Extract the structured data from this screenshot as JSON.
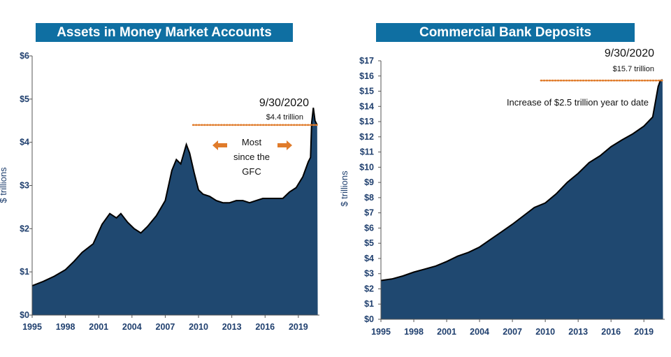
{
  "chart_data": [
    {
      "type": "area",
      "title": "Assets in Money Market Accounts",
      "ylabel": "$ trillions",
      "xlabel": "",
      "ylim": [
        0,
        6
      ],
      "xlim": [
        1995,
        2020.9
      ],
      "yticks": [
        "$0",
        "$1",
        "$2",
        "$3",
        "$4",
        "$5",
        "$6"
      ],
      "xticks": [
        "1995",
        "1998",
        "2001",
        "2004",
        "2007",
        "2010",
        "2013",
        "2016",
        "2019"
      ],
      "grid": false,
      "color": "#1f4870",
      "x": [
        1995.0,
        1996.0,
        1997.0,
        1998.0,
        1998.8,
        1999.5,
        2000.5,
        2001.3,
        2002.0,
        2002.6,
        2003.0,
        2003.6,
        2004.2,
        2004.8,
        2005.4,
        2006.2,
        2007.0,
        2007.6,
        2008.0,
        2008.4,
        2008.9,
        2009.2,
        2009.6,
        2010.0,
        2010.4,
        2011.0,
        2011.6,
        2012.2,
        2012.8,
        2013.4,
        2014.0,
        2014.6,
        2015.2,
        2015.8,
        2016.4,
        2017.0,
        2017.6,
        2018.2,
        2018.8,
        2019.4,
        2019.9,
        2020.1,
        2020.2,
        2020.35,
        2020.5,
        2020.7,
        2020.75
      ],
      "values": [
        0.68,
        0.78,
        0.9,
        1.05,
        1.25,
        1.45,
        1.65,
        2.1,
        2.35,
        2.25,
        2.35,
        2.15,
        2.0,
        1.9,
        2.05,
        2.3,
        2.65,
        3.35,
        3.6,
        3.5,
        3.95,
        3.75,
        3.3,
        2.9,
        2.8,
        2.75,
        2.65,
        2.6,
        2.6,
        2.65,
        2.65,
        2.6,
        2.65,
        2.7,
        2.7,
        2.7,
        2.7,
        2.85,
        2.95,
        3.2,
        3.55,
        3.65,
        4.45,
        4.8,
        4.5,
        4.4,
        0
      ],
      "reference_line": {
        "value": 4.4,
        "from_x": 2009.5,
        "to_x": 2020.7,
        "color": "#e07b2a"
      },
      "annotations": {
        "date": "9/30/2020",
        "value_label": "$4.4 trillion",
        "note_line1": "Most",
        "note_line2": "since the",
        "note_line3": "GFC",
        "arrow_color": "#e07b2a"
      }
    },
    {
      "type": "area",
      "title": "Commercial Bank Deposits",
      "ylabel": "$ trillions",
      "xlabel": "",
      "ylim": [
        0,
        17
      ],
      "xlim": [
        1995,
        2020.9
      ],
      "yticks": [
        "$0",
        "$1",
        "$2",
        "$3",
        "$4",
        "$5",
        "$6",
        "$7",
        "$8",
        "$9",
        "$10",
        "$11",
        "$12",
        "$13",
        "$14",
        "$15",
        "$16",
        "$17"
      ],
      "xticks": [
        "1995",
        "1998",
        "2001",
        "2004",
        "2007",
        "2010",
        "2013",
        "2016",
        "2019"
      ],
      "grid": false,
      "color": "#1f4870",
      "x": [
        1995.0,
        1996.0,
        1997.0,
        1998.0,
        1999.0,
        2000.0,
        2001.0,
        2002.0,
        2003.0,
        2004.0,
        2005.0,
        2006.0,
        2007.0,
        2008.0,
        2009.0,
        2010.0,
        2011.0,
        2012.0,
        2013.0,
        2014.0,
        2015.0,
        2016.0,
        2017.0,
        2018.0,
        2019.0,
        2019.8,
        2020.1,
        2020.3,
        2020.5,
        2020.7,
        2020.75
      ],
      "values": [
        2.55,
        2.65,
        2.85,
        3.1,
        3.3,
        3.5,
        3.8,
        4.15,
        4.4,
        4.75,
        5.25,
        5.75,
        6.25,
        6.8,
        7.35,
        7.65,
        8.25,
        9.0,
        9.6,
        10.3,
        10.75,
        11.35,
        11.8,
        12.2,
        12.7,
        13.3,
        14.5,
        15.3,
        15.7,
        15.75,
        0
      ],
      "reference_line": {
        "value": 15.7,
        "from_x": 2009.6,
        "to_x": 2020.7,
        "color": "#e07b2a"
      },
      "annotations": {
        "date": "9/30/2020",
        "value_label": "$15.7 trillion",
        "note": "Increase of $2.5 trillion year to date"
      }
    }
  ]
}
